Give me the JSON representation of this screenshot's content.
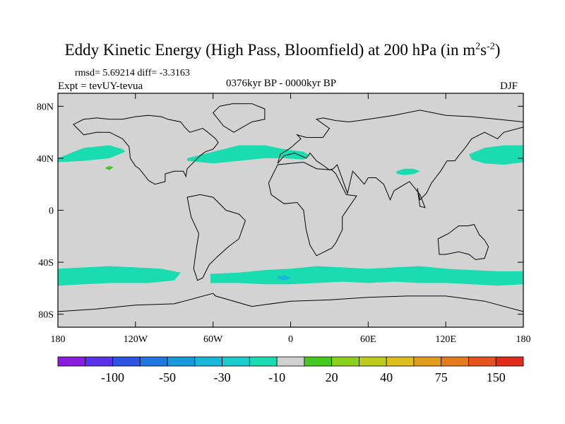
{
  "title": {
    "main": "Eddy Kinetic Energy (High Pass, Bloomfield) at 200 hPa (in m",
    "sup1": "2",
    "mid": "s",
    "sup2": "-2",
    "end": ")"
  },
  "stats": "rmsd= 5.69214 diff= -3.3163",
  "experiment": "Expt = tevUY-tevua",
  "period": "0376kyr BP - 0000kyr BP",
  "season": "DJF",
  "lat_ticks": [
    {
      "label": "80N",
      "lat": 80
    },
    {
      "label": "40N",
      "lat": 40
    },
    {
      "label": "0",
      "lat": 0
    },
    {
      "label": "40S",
      "lat": -40
    },
    {
      "label": "80S",
      "lat": -80
    }
  ],
  "lon_ticks": [
    {
      "label": "180",
      "lon": -180
    },
    {
      "label": "120W",
      "lon": -120
    },
    {
      "label": "60W",
      "lon": -60
    },
    {
      "label": "0",
      "lon": 0
    },
    {
      "label": "60E",
      "lon": 60
    },
    {
      "label": "120E",
      "lon": 120
    },
    {
      "label": "180",
      "lon": 180
    }
  ],
  "colorbar": {
    "colors": [
      "#8a1ce0",
      "#5a32e6",
      "#2e54e0",
      "#1e78e0",
      "#1a98dc",
      "#1ab8d8",
      "#1ccccc",
      "#19dcb0",
      "#d0d0d0",
      "#46c81e",
      "#8cd01e",
      "#bccc1e",
      "#dcbe1e",
      "#e49c1e",
      "#e47c1e",
      "#e4541e",
      "#e02c1a"
    ],
    "labels": [
      {
        "text": "-100",
        "index": 2
      },
      {
        "text": "-50",
        "index": 4
      },
      {
        "text": "-30",
        "index": 6
      },
      {
        "text": "-10",
        "index": 8
      },
      {
        "text": "20",
        "index": 10
      },
      {
        "text": "40",
        "index": 12
      },
      {
        "text": "75",
        "index": 14
      },
      {
        "text": "150",
        "index": 16
      }
    ]
  },
  "map": {
    "background_color": "#d3d3d3",
    "anomaly_regions": [
      {
        "name": "north-atlantic-band",
        "color": "#19dcb0",
        "lon": [
          -80,
          -60,
          -40,
          -20,
          -5,
          10,
          15,
          10,
          -5,
          -20,
          -40,
          -60,
          -80
        ],
        "lat": [
          40,
          45,
          50,
          50,
          47,
          45,
          42,
          39,
          40,
          40,
          38,
          36,
          38
        ]
      },
      {
        "name": "north-pacific-band",
        "color": "#19dcb0",
        "lon": [
          -180,
          -160,
          -140,
          -130,
          -128,
          -140,
          -160,
          -180
        ],
        "lat": [
          40,
          48,
          50,
          47,
          45,
          40,
          38,
          37
        ]
      },
      {
        "name": "west-pacific-band",
        "color": "#19dcb0",
        "lon": [
          138,
          150,
          165,
          180,
          180,
          165,
          150,
          140
        ],
        "lat": [
          43,
          48,
          50,
          50,
          37,
          35,
          36,
          39
        ]
      },
      {
        "name": "tibet-patch",
        "color": "#19dcb0",
        "lon": [
          82,
          88,
          95,
          100,
          96,
          88,
          82
        ],
        "lat": [
          30,
          32,
          32,
          30,
          28,
          27,
          28
        ]
      },
      {
        "name": "southern-ocean-band-west",
        "color": "#19dcb0",
        "lon": [
          -180,
          -160,
          -140,
          -120,
          -100,
          -85,
          -90,
          -110,
          -140,
          -160,
          -180
        ],
        "lat": [
          -45,
          -44,
          -43,
          -44,
          -45,
          -48,
          -54,
          -56,
          -56,
          -57,
          -58
        ]
      },
      {
        "name": "southern-ocean-band-east",
        "color": "#19dcb0",
        "lon": [
          -62,
          -40,
          -20,
          0,
          20,
          40,
          60,
          80,
          100,
          120,
          140,
          160,
          180,
          180,
          160,
          140,
          120,
          100,
          80,
          60,
          40,
          20,
          0,
          -20,
          -40,
          -62
        ],
        "lat": [
          -49,
          -48,
          -46,
          -45,
          -43,
          -44,
          -45,
          -44,
          -43,
          -45,
          -46,
          -47,
          -47,
          -57,
          -58,
          -57,
          -56,
          -56,
          -55,
          -56,
          -55,
          -56,
          -57,
          -57,
          -56,
          -56
        ]
      },
      {
        "name": "southern-ocean-blue-patch",
        "color": "#1ab8d8",
        "lon": [
          -10,
          -4,
          0,
          -4,
          -10
        ],
        "lat": [
          -51,
          -50,
          -52,
          -54,
          -53
        ]
      },
      {
        "name": "hawaii-green-patch",
        "color": "#46c81e",
        "lon": [
          -143,
          -140,
          -137,
          -140,
          -143
        ],
        "lat": [
          33,
          34,
          33,
          31,
          32
        ]
      }
    ],
    "coastlines": [
      {
        "name": "north-america",
        "lon": [
          -168,
          -160,
          -150,
          -140,
          -130,
          -125,
          -124,
          -120,
          -117,
          -110,
          -105,
          -97,
          -97,
          -90,
          -83,
          -81,
          -80,
          -76,
          -70,
          -66,
          -60,
          -56,
          -58,
          -64,
          -68,
          -78,
          -82,
          -85,
          -95,
          -100,
          -110,
          -120,
          -130,
          -140,
          -150,
          -160,
          -168
        ],
        "lat": [
          66,
          58,
          60,
          60,
          55,
          49,
          40,
          34,
          32,
          23,
          20,
          22,
          28,
          30,
          30,
          26,
          32,
          36,
          42,
          45,
          47,
          52,
          55,
          60,
          63,
          60,
          64,
          68,
          70,
          72,
          73,
          72,
          70,
          70,
          71,
          70,
          66
        ]
      },
      {
        "name": "south-america",
        "lon": [
          -80,
          -75,
          -70,
          -60,
          -50,
          -40,
          -35,
          -40,
          -48,
          -57,
          -63,
          -68,
          -72,
          -75,
          -73,
          -71,
          -77,
          -80
        ],
        "lat": [
          10,
          11,
          12,
          10,
          0,
          -3,
          -8,
          -22,
          -28,
          -36,
          -42,
          -52,
          -54,
          -45,
          -30,
          -18,
          -5,
          10
        ]
      },
      {
        "name": "greenland",
        "lon": [
          -55,
          -45,
          -30,
          -20,
          -20,
          -30,
          -44,
          -52,
          -60,
          -55
        ],
        "lat": [
          80,
          82,
          82,
          78,
          70,
          68,
          60,
          65,
          75,
          80
        ]
      },
      {
        "name": "eurasia",
        "lon": [
          -10,
          -8,
          0,
          8,
          5,
          12,
          25,
          30,
          20,
          25,
          35,
          45,
          60,
          80,
          100,
          120,
          140,
          160,
          180,
          180,
          165,
          160,
          150,
          140,
          135,
          130,
          127,
          121,
          116,
          109,
          105,
          100,
          98,
          100,
          104,
          100,
          92,
          90,
          80,
          77,
          72,
          66,
          60,
          57,
          50,
          48,
          44,
          36,
          33,
          30,
          26,
          20,
          15,
          12,
          3,
          -5,
          -10
        ],
        "lat": [
          36,
          43,
          48,
          55,
          58,
          56,
          56,
          63,
          70,
          71,
          69,
          68,
          70,
          73,
          77,
          73,
          72,
          70,
          68,
          64,
          60,
          55,
          60,
          55,
          48,
          42,
          38,
          38,
          30,
          21,
          13,
          8,
          17,
          3,
          2,
          12,
          22,
          21,
          15,
          8,
          20,
          25,
          25,
          20,
          28,
          30,
          13,
          35,
          32,
          31,
          34,
          38,
          44,
          40,
          44,
          42,
          36
        ]
      },
      {
        "name": "africa",
        "lon": [
          -17,
          -10,
          0,
          10,
          20,
          32,
          35,
          43,
          51,
          40,
          40,
          35,
          32,
          20,
          15,
          12,
          10,
          5,
          -5,
          -15,
          -17
        ],
        "lat": [
          21,
          35,
          36,
          37,
          32,
          31,
          28,
          12,
          11,
          -5,
          -15,
          -25,
          -29,
          -35,
          -27,
          -15,
          0,
          6,
          5,
          12,
          21
        ]
      },
      {
        "name": "australia",
        "lon": [
          114,
          122,
          130,
          137,
          142,
          146,
          150,
          153,
          150,
          143,
          138,
          130,
          120,
          115,
          114
        ],
        "lat": [
          -22,
          -18,
          -12,
          -12,
          -11,
          -19,
          -23,
          -28,
          -37,
          -38,
          -34,
          -32,
          -34,
          -34,
          -22
        ]
      },
      {
        "name": "antarctica",
        "lon": [
          -180,
          -150,
          -120,
          -90,
          -60,
          -58,
          -30,
          0,
          30,
          60,
          90,
          120,
          150,
          180
        ],
        "lat": [
          -78,
          -76,
          -73,
          -72,
          -64,
          -66,
          -74,
          -70,
          -69,
          -67,
          -66,
          -66,
          -70,
          -78
        ]
      }
    ]
  }
}
